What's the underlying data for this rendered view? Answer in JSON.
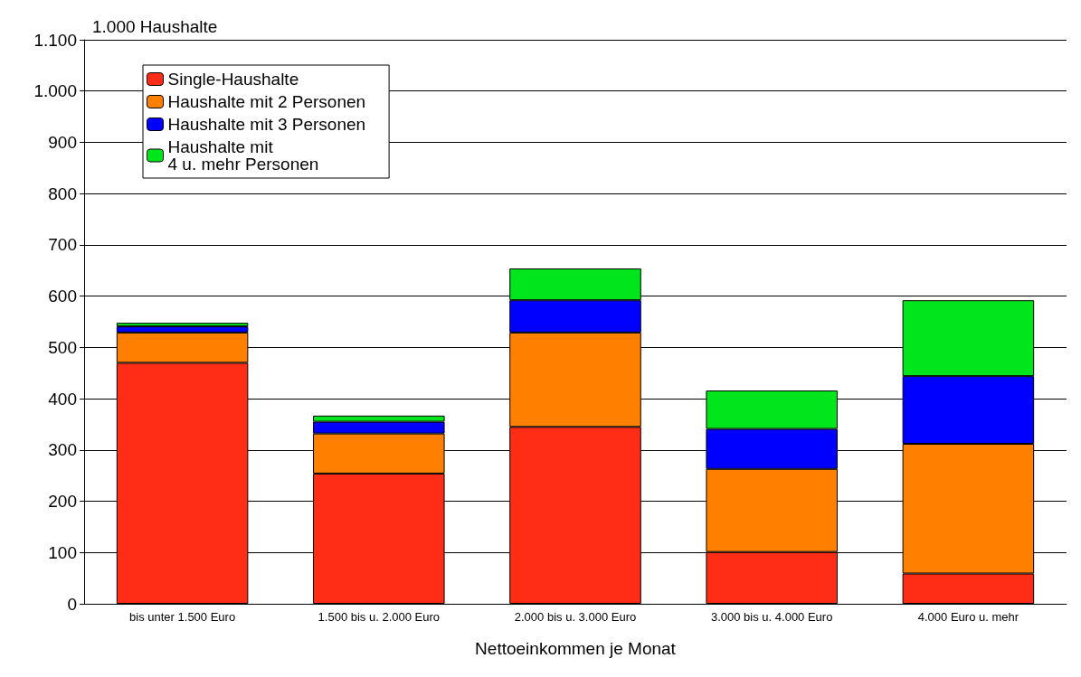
{
  "chart_data": {
    "type": "bar",
    "stacked": true,
    "ylabel": "1.000 Haushalte",
    "xlabel": "Nettoeinkommen je Monat",
    "categories": [
      "bis unter 1.500 Euro",
      "1.500 bis u. 2.000 Euro",
      "2.000 bis u. 3.000 Euro",
      "3.000 bis u. 4.000 Euro",
      "4.000 Euro u. mehr"
    ],
    "series": [
      {
        "name": "Single-Haushalte",
        "color": "#ff2d16",
        "values": [
          470,
          254,
          345,
          101,
          59
        ]
      },
      {
        "name": "Haushalte mit 2 Personen",
        "color": "#ff8000",
        "values": [
          59,
          78,
          184,
          162,
          253
        ]
      },
      {
        "name": "Haushalte mit 3 Personen",
        "color": "#0000ff",
        "values": [
          12,
          23,
          63,
          78,
          132
        ]
      },
      {
        "name": "Haushalte mit\n4 u. mehr Personen",
        "color": "#00e51c",
        "values": [
          7,
          12,
          62,
          75,
          148
        ]
      }
    ],
    "ylim": [
      0,
      1100
    ],
    "yticks": [
      0,
      100,
      200,
      300,
      400,
      500,
      600,
      700,
      800,
      900,
      {
        "value": 1000,
        "label": "1.000"
      },
      {
        "value": 1100,
        "label": "1.100"
      }
    ],
    "grid": "y",
    "legend": "top left"
  }
}
